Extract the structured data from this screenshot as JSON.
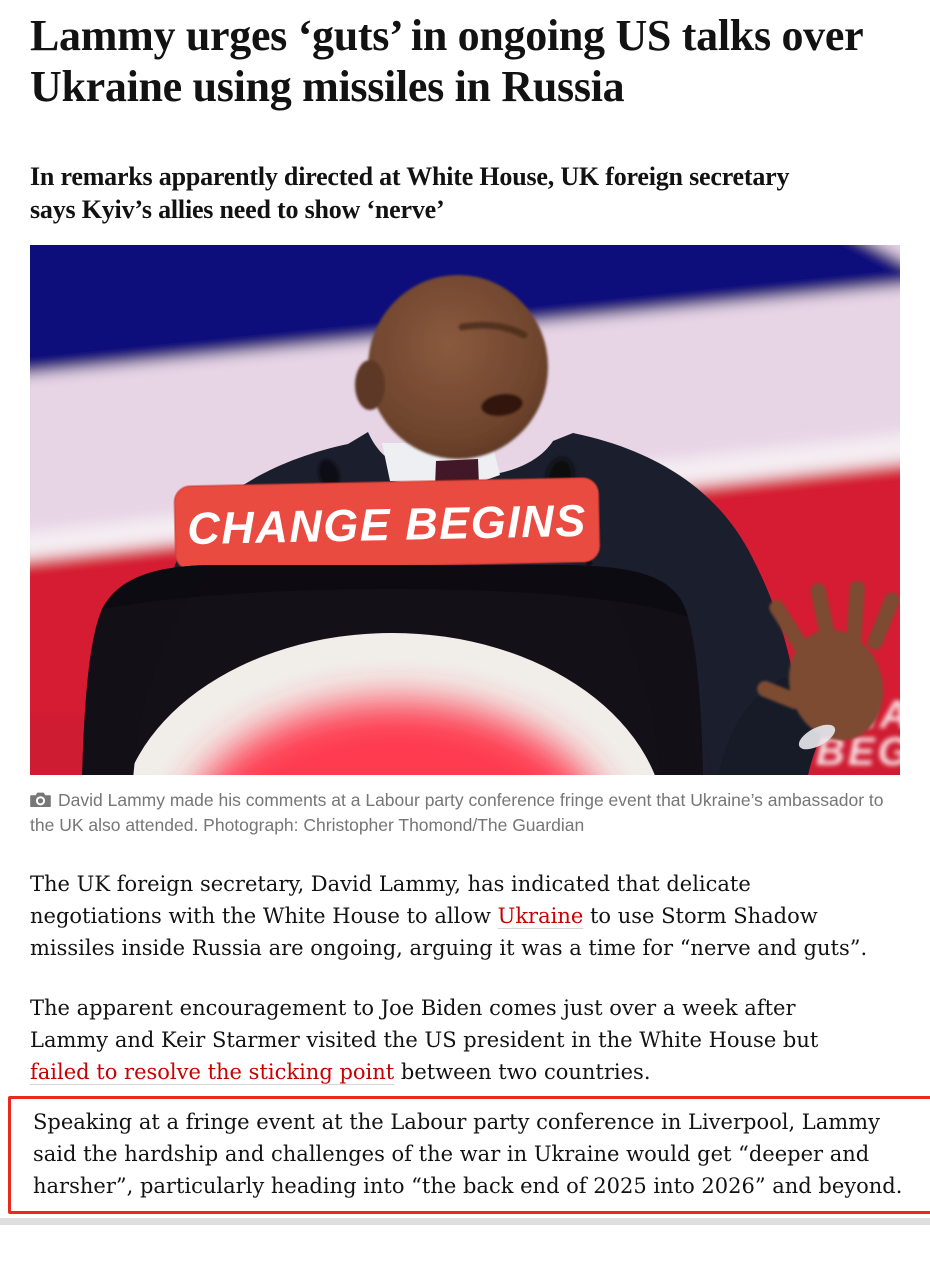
{
  "article": {
    "headline": "Lammy urges ‘guts’ in ongoing US talks over Ukraine using missiles in Russia",
    "standfirst": "In remarks apparently directed at White House, UK foreign secretary says Kyiv’s allies need to show ‘nerve’",
    "photo": {
      "alt": "David Lammy speaking at a red podium at the Labour party conference",
      "sign_text": "CHANGE BEGINS",
      "corner_line1": "CHANGE",
      "corner_line2": "BEGINS"
    },
    "caption": {
      "icon": "camera-icon",
      "text": "David Lammy made his comments at a Labour party conference fringe event that Ukraine’s ambassador to the UK also attended. Photograph: Christopher Thomond/The Guardian"
    },
    "paragraphs": [
      {
        "highlighted": false,
        "segments": [
          {
            "text": "The UK foreign secretary, David Lammy, has indicated that delicate negotiations with the White House to allow "
          },
          {
            "text": "Ukraine",
            "link": true
          },
          {
            "text": " to use Storm Shadow missiles inside Russia are ongoing, arguing it was a time for “nerve and guts”."
          }
        ]
      },
      {
        "highlighted": false,
        "segments": [
          {
            "text": "The apparent encouragement to Joe Biden comes just over a week after Lammy and Keir Starmer visited the US president in the White House but "
          },
          {
            "text": "failed to resolve the sticking point",
            "link": true
          },
          {
            "text": " between two countries."
          }
        ]
      },
      {
        "highlighted": true,
        "segments": [
          {
            "text": "Speaking at a fringe event at the Labour party conference in Liverpool, Lammy said the hardship and challenges of the war in Ukraine would get “deeper and harsher”, particularly heading into “the back end of 2025 into 2026” and beyond."
          }
        ]
      }
    ],
    "colors": {
      "link": "#c70000",
      "highlight_border": "#e8291c",
      "caption": "#767676",
      "text": "#121212",
      "photo_navy": "#0f0f7b",
      "photo_pink": "#e7d4e5",
      "photo_red": "#d51f33",
      "sign_red": "#ea4b40"
    }
  }
}
